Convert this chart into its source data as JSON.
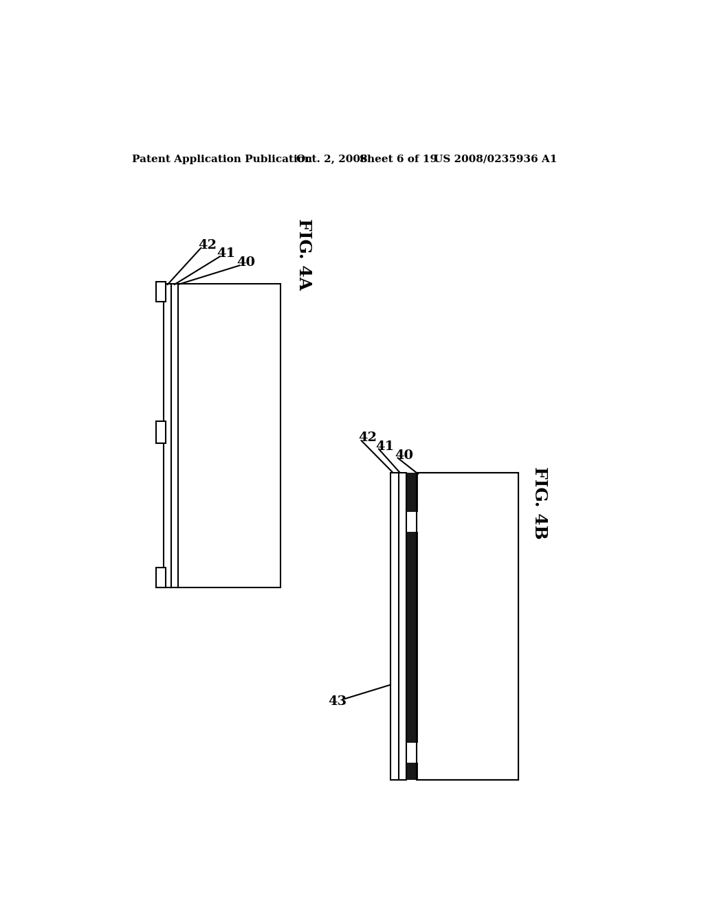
{
  "background_color": "#ffffff",
  "header_text": "Patent Application Publication",
  "header_date": "Oct. 2, 2008",
  "header_sheet": "Sheet 6 of 19",
  "header_patent": "US 2008/0235936 A1",
  "fig4a_label": "FIG. 4A",
  "fig4b_label": "FIG. 4B",
  "line_color": "#000000",
  "dark_fill": "#1a1a1a",
  "white_fill": "#ffffff"
}
